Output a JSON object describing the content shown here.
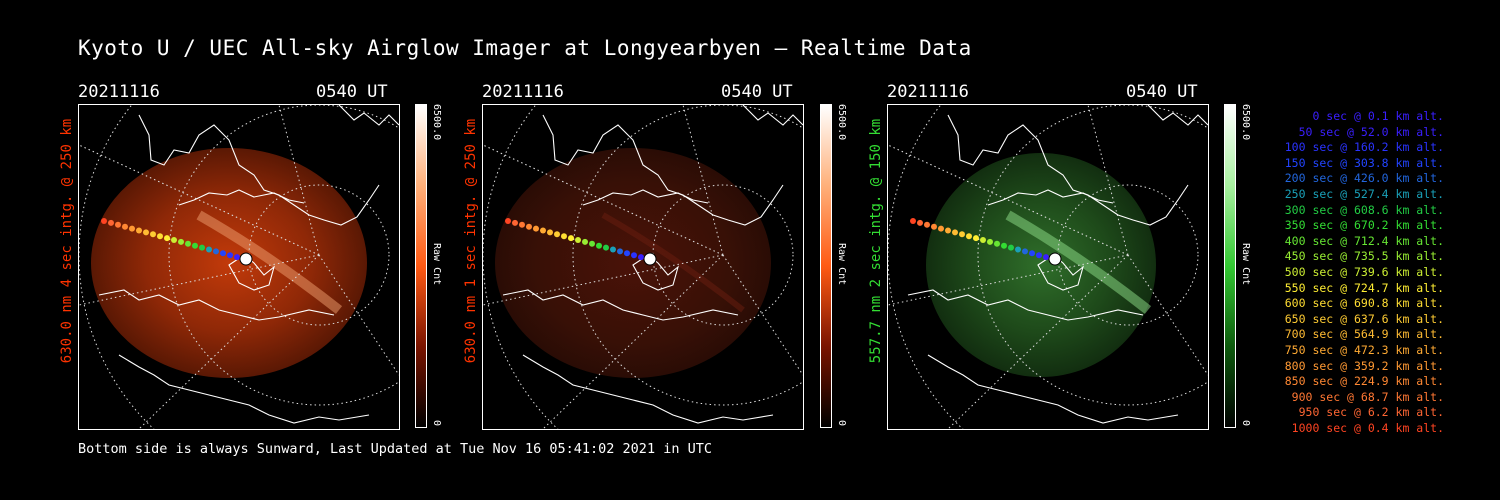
{
  "title": "Kyoto U / UEC All-sky Airglow Imager at Longyearbyen — Realtime Data",
  "footer": "Bottom side is always Sunward, Last Updated at Tue Nov 16 05:41:02 2021 in UTC",
  "panels": [
    {
      "date": "20211116",
      "time": "0540 UT",
      "ylabel": "630.0 nm 4 sec intg. @ 250 km",
      "ylabel_color": "#ff3300",
      "cbar_max": "6500.0",
      "cbar_unit": "Raw Cnt",
      "cbar_min": "0",
      "image_color": "red-strong"
    },
    {
      "date": "20211116",
      "time": "0540 UT",
      "ylabel": "630.0 nm 1 sec intg. @ 250 km",
      "ylabel_color": "#ff3300",
      "cbar_max": "6500.0",
      "cbar_unit": "Raw Cnt",
      "cbar_min": "0",
      "image_color": "red-dim"
    },
    {
      "date": "20211116",
      "time": "0540 UT",
      "ylabel": "557.7 nm 2 sec intg. @ 150 km",
      "ylabel_color": "#33dd33",
      "cbar_max": "6500.0",
      "cbar_unit": "Raw Cnt",
      "cbar_min": "0",
      "image_color": "green"
    }
  ],
  "legend": [
    {
      "text": "0 sec @   0.1 km alt.",
      "color": "#3a1fff"
    },
    {
      "text": "50 sec @  52.0 km alt.",
      "color": "#3a1fff"
    },
    {
      "text": "100 sec @ 160.2 km alt.",
      "color": "#2a33ff"
    },
    {
      "text": "150 sec @ 303.8 km alt.",
      "color": "#2244ff"
    },
    {
      "text": "200 sec @ 426.0 km alt.",
      "color": "#2266dd"
    },
    {
      "text": "250 sec @ 527.4 km alt.",
      "color": "#1aa0b8"
    },
    {
      "text": "300 sec @ 608.6 km alt.",
      "color": "#22cc44"
    },
    {
      "text": "350 sec @ 670.2 km alt.",
      "color": "#33dd33"
    },
    {
      "text": "400 sec @ 712.4 km alt.",
      "color": "#66e633"
    },
    {
      "text": "450 sec @ 735.5 km alt.",
      "color": "#99ee33"
    },
    {
      "text": "500 sec @ 739.6 km alt.",
      "color": "#ccee33"
    },
    {
      "text": "550 sec @ 724.7 km alt.",
      "color": "#ffee33"
    },
    {
      "text": "600 sec @ 690.8 km alt.",
      "color": "#ffdd33"
    },
    {
      "text": "650 sec @ 637.6 km alt.",
      "color": "#ffcc33"
    },
    {
      "text": "700 sec @ 564.9 km alt.",
      "color": "#ffbb33"
    },
    {
      "text": "750 sec @ 472.3 km alt.",
      "color": "#ffaa33"
    },
    {
      "text": "800 sec @ 359.2 km alt.",
      "color": "#ff9933"
    },
    {
      "text": "850 sec @ 224.9 km alt.",
      "color": "#ff8833"
    },
    {
      "text": "900 sec @  68.7 km alt.",
      "color": "#ff7733"
    },
    {
      "text": "950 sec @   6.2 km alt.",
      "color": "#ff6633"
    },
    {
      "text": "1000 sec @   0.4 km alt.",
      "color": "#ff4422"
    }
  ]
}
